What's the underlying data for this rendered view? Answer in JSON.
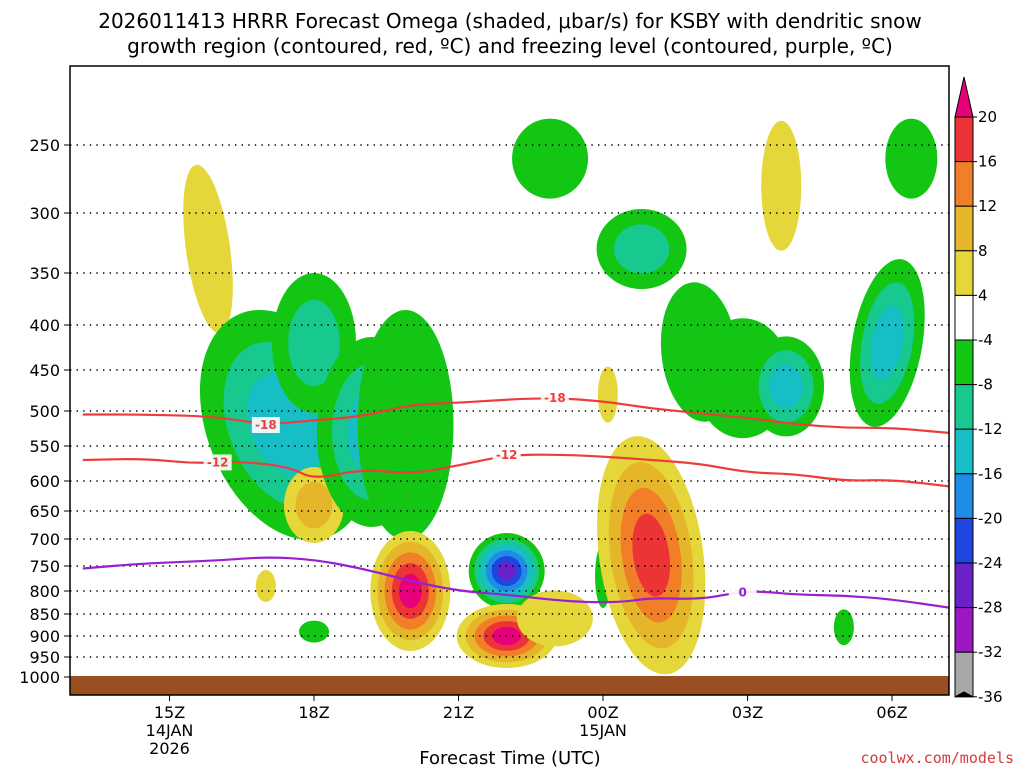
{
  "chart_data": {
    "type": "contour-timeheight",
    "title_line1": "2026011413 HRRR Forecast Omega (shaded, μbar/s) for KSBY with dendritic snow",
    "title_line2": "growth region (contoured, red, ºC) and freezing level (contoured, purple, ºC)",
    "xlabel": "Forecast Time (UTC)",
    "credit": "coolwx.com/models",
    "x_domain_hours": [
      13.2,
      31.3
    ],
    "x_ticks": [
      {
        "hour": 15,
        "label": "15Z",
        "sub1": "14JAN",
        "sub2": "2026"
      },
      {
        "hour": 18,
        "label": "18Z",
        "sub1": "",
        "sub2": ""
      },
      {
        "hour": 21,
        "label": "21Z",
        "sub1": "",
        "sub2": ""
      },
      {
        "hour": 24,
        "label": "00Z",
        "sub1": "15JAN",
        "sub2": ""
      },
      {
        "hour": 27,
        "label": "03Z",
        "sub1": "",
        "sub2": ""
      },
      {
        "hour": 30,
        "label": "06Z",
        "sub1": "",
        "sub2": ""
      }
    ],
    "y_domain_mb": [
      1010,
      200
    ],
    "y_ticks": [
      250,
      300,
      350,
      400,
      450,
      500,
      550,
      600,
      650,
      700,
      750,
      800,
      850,
      900,
      950,
      1000
    ],
    "colorbar": {
      "levels": [
        20,
        16,
        12,
        8,
        4,
        -4,
        -8,
        -12,
        -16,
        -20,
        -24,
        -28,
        -32,
        -36
      ],
      "colors": [
        "#e8007a",
        "#ec3336",
        "#f07f28",
        "#e6b62a",
        "#e5d63a",
        "#ffffff",
        "#13c613",
        "#17c98e",
        "#17bec5",
        "#1e8de8",
        "#1f46e0",
        "#6a22c8",
        "#9b18c3",
        "#a8a8a8",
        "#000000"
      ]
    },
    "omega_regions": [
      {
        "hour": 15.8,
        "mb": 330,
        "peak": 5
      },
      {
        "hour": 16.6,
        "mb": 580,
        "peak": 4
      },
      {
        "hour": 17.0,
        "mb": 790,
        "peak": 5
      },
      {
        "hour": 17.4,
        "mb": 520,
        "peak": -12
      },
      {
        "hour": 18.0,
        "mb": 420,
        "peak": -10
      },
      {
        "hour": 18.0,
        "mb": 640,
        "peak": 8
      },
      {
        "hour": 18.0,
        "mb": 890,
        "peak": -6
      },
      {
        "hour": 19.2,
        "mb": 530,
        "peak": -14
      },
      {
        "hour": 19.9,
        "mb": 520,
        "peak": -7
      },
      {
        "hour": 20.0,
        "mb": 800,
        "peak": 20
      },
      {
        "hour": 22.0,
        "mb": 760,
        "peak": -24
      },
      {
        "hour": 22.0,
        "mb": 900,
        "peak": 20
      },
      {
        "hour": 23.0,
        "mb": 860,
        "peak": 4
      },
      {
        "hour": 22.9,
        "mb": 260,
        "peak": -6
      },
      {
        "hour": 24.0,
        "mb": 770,
        "peak": -6
      },
      {
        "hour": 24.1,
        "mb": 480,
        "peak": 4
      },
      {
        "hour": 24.8,
        "mb": 330,
        "peak": -10
      },
      {
        "hour": 25.0,
        "mb": 730,
        "peak": 16
      },
      {
        "hour": 26.0,
        "mb": 430,
        "peak": -6
      },
      {
        "hour": 26.9,
        "mb": 460,
        "peak": -6
      },
      {
        "hour": 27.8,
        "mb": 470,
        "peak": -12
      },
      {
        "hour": 27.7,
        "mb": 280,
        "peak": 5
      },
      {
        "hour": 29.0,
        "mb": 880,
        "peak": -6
      },
      {
        "hour": 29.9,
        "mb": 420,
        "peak": -12
      },
      {
        "hour": 30.4,
        "mb": 260,
        "peak": -6
      }
    ],
    "contours": [
      {
        "name": "-18 isotherm",
        "label": "-18",
        "color": "#ec3c3c",
        "points": [
          [
            13.2,
            505
          ],
          [
            14.5,
            505
          ],
          [
            16.0,
            508
          ],
          [
            17.0,
            520
          ],
          [
            18.0,
            513
          ],
          [
            19.0,
            508
          ],
          [
            20.0,
            492
          ],
          [
            21.0,
            490
          ],
          [
            22.0,
            486
          ],
          [
            23.0,
            484
          ],
          [
            24.0,
            488
          ],
          [
            25.0,
            497
          ],
          [
            26.0,
            503
          ],
          [
            27.0,
            510
          ],
          [
            28.0,
            519
          ],
          [
            29.0,
            524
          ],
          [
            30.0,
            524
          ],
          [
            31.3,
            532
          ]
        ],
        "labels_at": [
          17.0,
          23.0
        ]
      },
      {
        "name": "-12 isotherm",
        "label": "-12",
        "color": "#ec3c3c",
        "points": [
          [
            13.2,
            570
          ],
          [
            14.5,
            568
          ],
          [
            15.5,
            575
          ],
          [
            16.5,
            572
          ],
          [
            17.5,
            580
          ],
          [
            18.0,
            598
          ],
          [
            19.0,
            583
          ],
          [
            20.0,
            590
          ],
          [
            21.0,
            578
          ],
          [
            22.0,
            563
          ],
          [
            23.0,
            562
          ],
          [
            24.0,
            565
          ],
          [
            25.0,
            570
          ],
          [
            26.0,
            575
          ],
          [
            27.0,
            588
          ],
          [
            28.0,
            590
          ],
          [
            29.0,
            600
          ],
          [
            30.0,
            598
          ],
          [
            31.3,
            610
          ]
        ],
        "labels_at": [
          16.0,
          22.0
        ]
      },
      {
        "name": "0 freezing level",
        "label": "0",
        "color": "#9a1fd0",
        "points": [
          [
            13.2,
            755
          ],
          [
            14.5,
            745
          ],
          [
            16.0,
            740
          ],
          [
            17.0,
            733
          ],
          [
            18.0,
            738
          ],
          [
            19.0,
            755
          ],
          [
            20.0,
            780
          ],
          [
            21.0,
            800
          ],
          [
            22.0,
            808
          ],
          [
            23.0,
            820
          ],
          [
            23.8,
            825
          ],
          [
            24.5,
            823
          ],
          [
            25.0,
            815
          ],
          [
            26.0,
            818
          ],
          [
            26.7,
            805
          ],
          [
            27.2,
            800
          ],
          [
            28.0,
            808
          ],
          [
            29.0,
            810
          ],
          [
            30.0,
            818
          ],
          [
            31.3,
            838
          ]
        ],
        "labels_at": [
          26.9
        ]
      }
    ]
  }
}
